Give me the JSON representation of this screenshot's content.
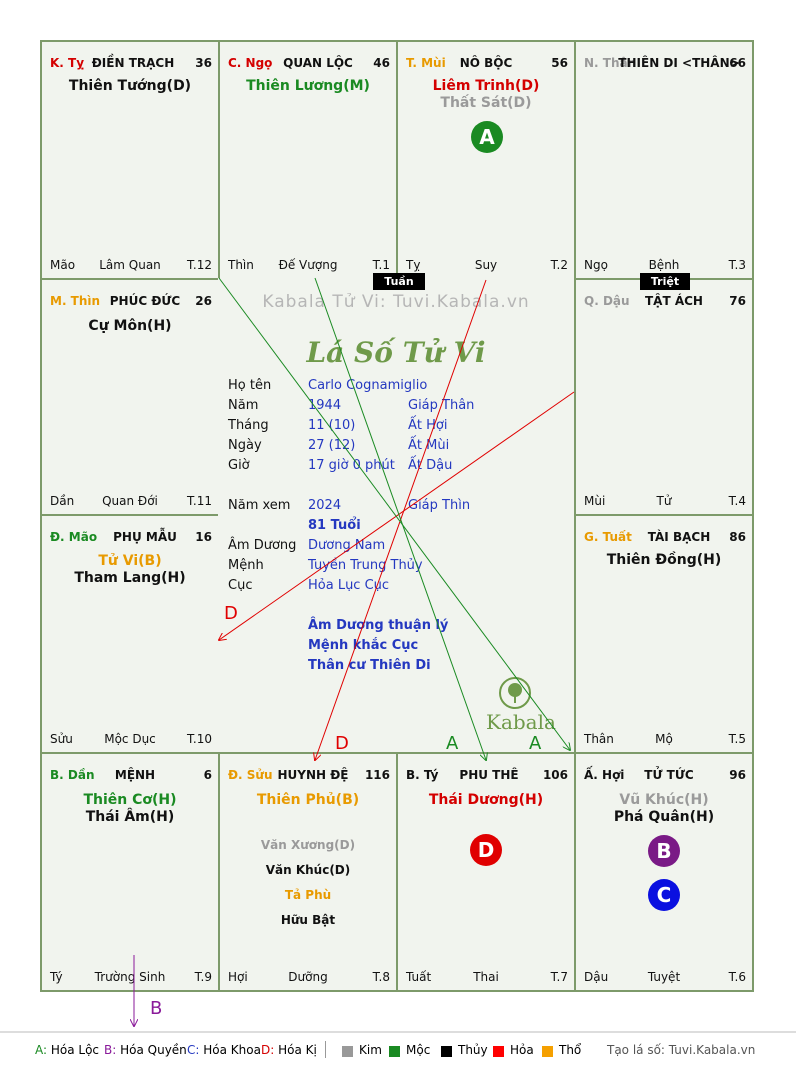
{
  "palaces": {
    "ty_snake": {
      "can": "K. Tỵ",
      "name": "ĐIỀN TRẠCH",
      "age": "36",
      "stars": [
        "Thiên Tướng(D)"
      ],
      "foot": [
        "Mão",
        "Lâm Quan",
        "T.12"
      ]
    },
    "ngo": {
      "can": "C. Ngọ",
      "name": "QUAN LỘC",
      "age": "46",
      "stars": [
        "Thiên Lương(M)"
      ],
      "foot": [
        "Thìn",
        "Đế Vượng",
        "T.1"
      ]
    },
    "mui": {
      "can": "T. Mùi",
      "name": "NÔ BỘC",
      "age": "56",
      "stars": [
        "Liêm Trinh(D)",
        "Thất Sát(D)"
      ],
      "badge": "A",
      "foot": [
        "Tỵ",
        "Suy",
        "T.2"
      ]
    },
    "than": {
      "can": "N. Thân",
      "name": "THIÊN DI <THÂN>",
      "age": "66",
      "foot": [
        "Ngọ",
        "Bệnh",
        "T.3"
      ]
    },
    "thin": {
      "can": "M. Thìn",
      "name": "PHÚC ĐỨC",
      "age": "26",
      "stars": [
        "Cự Môn(H)"
      ],
      "foot": [
        "Dần",
        "Quan Đới",
        "T.11"
      ]
    },
    "dau": {
      "can": "Q. Dậu",
      "name": "TẬT ÁCH",
      "age": "76",
      "foot": [
        "Mùi",
        "Tử",
        "T.4"
      ]
    },
    "mao": {
      "can": "Đ. Mão",
      "name": "PHỤ MẪU",
      "age": "16",
      "stars": [
        "Tử Vi(B)",
        "Tham Lang(H)"
      ],
      "foot": [
        "Sửu",
        "Mộc Dục",
        "T.10"
      ]
    },
    "tuat": {
      "can": "G. Tuất",
      "name": "TÀI BẠCH",
      "age": "86",
      "stars": [
        "Thiên Đồng(H)"
      ],
      "foot": [
        "Thân",
        "Mộ",
        "T.5"
      ]
    },
    "dan": {
      "can": "B. Dần",
      "name": "MỆNH",
      "age": "6",
      "stars": [
        "Thiên Cơ(H)",
        "Thái Âm(H)"
      ],
      "foot": [
        "Tý",
        "Trường Sinh",
        "T.9"
      ]
    },
    "suu": {
      "can": "Đ. Sửu",
      "name": "HUYNH ĐỆ",
      "age": "116",
      "stars": [
        "Thiên Phủ(B)"
      ],
      "minor": [
        "Văn Xương(D)",
        "Văn Khúc(D)",
        "Tả Phù",
        "Hữu Bật"
      ],
      "foot": [
        "Hợi",
        "Dưỡng",
        "T.8"
      ]
    },
    "ti_rat": {
      "can": "B. Tý",
      "name": "PHU THÊ",
      "age": "106",
      "stars": [
        "Thái Dương(H)"
      ],
      "badge": "D",
      "foot": [
        "Tuất",
        "Thai",
        "T.7"
      ]
    },
    "hoi": {
      "can": "Ấ. Hợi",
      "name": "TỬ TỨC",
      "age": "96",
      "stars": [
        "Vũ Khúc(H)",
        "Phá Quân(H)"
      ],
      "badges": [
        "B",
        "C"
      ],
      "foot": [
        "Dậu",
        "Tuyệt",
        "T.6"
      ]
    }
  },
  "tags": {
    "tuan": "Tuần",
    "triet": "Triệt"
  },
  "center": {
    "watermark": "Kabala Tử Vi: Tuvi.Kabala.vn",
    "logo": "Lá Số Tử Vi",
    "rows": [
      {
        "label": "Họ tên",
        "v1": "Carlo Cognamiglio",
        "v2": ""
      },
      {
        "label": "Năm",
        "v1": "1944",
        "v2": "Giáp Thân"
      },
      {
        "label": "Tháng",
        "v1": "11  (10)",
        "v2": "Ất Hợi"
      },
      {
        "label": "Ngày",
        "v1": "27  (12)",
        "v2": "Ất Mùi"
      },
      {
        "label": "Giờ",
        "v1": "17 giờ 0 phút",
        "v2": "Ất Dậu"
      },
      {
        "label": "Năm xem",
        "v1": "2024",
        "v2": "Giáp Thìn"
      },
      {
        "label": "",
        "v1": "81 Tuổi",
        "v2": ""
      },
      {
        "label": "Âm Dương",
        "v1": "Dương Nam",
        "v2": ""
      },
      {
        "label": "Mệnh",
        "v1": "Tuyền Trung Thủy",
        "v2": ""
      },
      {
        "label": "Cục",
        "v1": "Hỏa Lục Cục",
        "v2": ""
      }
    ],
    "notes": [
      "Âm Dương thuận lý",
      "Mệnh khắc Cục",
      "Thân cư Thiên Di"
    ],
    "brand": "Kabala"
  },
  "arrow_labels": {
    "d_left": "D",
    "d_bottom": "D",
    "a1": "A",
    "a2": "A",
    "b_out": "B"
  },
  "legend": {
    "hoa": [
      {
        "k": "A:",
        "t": "Hóa Lộc",
        "color": "#1a8a22"
      },
      {
        "k": "B:",
        "t": "Hóa Quyền",
        "color": "#8a1a9a"
      },
      {
        "k": "C:",
        "t": "Hóa Khoa",
        "color": "#2438c0"
      },
      {
        "k": "D:",
        "t": "Hóa Kị",
        "color": "#d40000"
      }
    ],
    "elements": [
      {
        "t": "Kim",
        "color": "#999999"
      },
      {
        "t": "Mộc",
        "color": "#1a8a22"
      },
      {
        "t": "Thủy",
        "color": "#000000"
      },
      {
        "t": "Hỏa",
        "color": "#ff0000"
      },
      {
        "t": "Thổ",
        "color": "#f5a000"
      }
    ],
    "credit": "Tạo lá số: Tuvi.Kabala.vn"
  }
}
